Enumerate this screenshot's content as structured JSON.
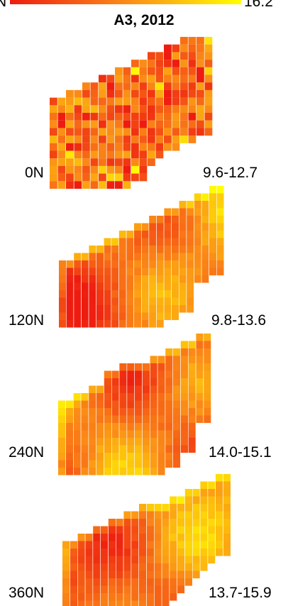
{
  "colors": {
    "low": "#ee1c10",
    "mid": "#fb8a17",
    "high": "#ffff00",
    "grid": "#ffffff"
  },
  "legend": {
    "left_label": "N",
    "right_label": "16.2"
  },
  "title": "A3, 2012",
  "chart_data": [
    {
      "type": "heatmap",
      "nitrogen_label": "0N",
      "range_label": "9.6-12.7",
      "range": [
        9.6,
        12.7
      ],
      "pattern": "mottled"
    },
    {
      "type": "heatmap",
      "nitrogen_label": "120N",
      "range_label": "9.8-13.6",
      "range": [
        9.8,
        13.6
      ],
      "pattern": "smooth"
    },
    {
      "type": "heatmap",
      "nitrogen_label": "240N",
      "range_label": "14.0-15.1",
      "range": [
        14.0,
        15.1
      ],
      "pattern": "smooth"
    },
    {
      "type": "heatmap",
      "nitrogen_label": "360N",
      "range_label": "13.7-15.9",
      "range": [
        13.7,
        15.9
      ],
      "pattern": "smooth"
    }
  ]
}
